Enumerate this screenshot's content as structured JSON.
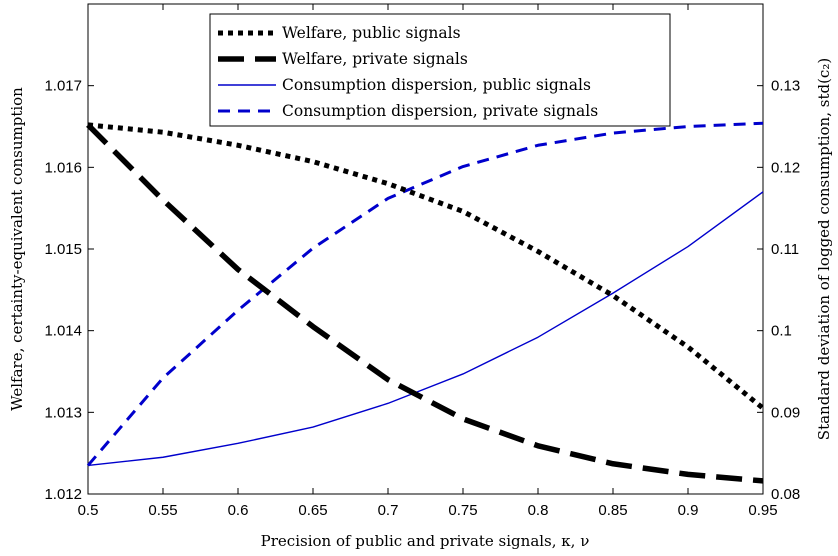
{
  "chart_data": {
    "type": "line",
    "title": "",
    "xlabel": "Precision of public and private signals, κ, ν",
    "ylabel_left": "Welfare, certainty-equivalent consumption",
    "ylabel_right": "Standard deviation of logged consumption, std(c₂)",
    "xlim": [
      0.5,
      0.95
    ],
    "ylim_left": [
      1.012,
      1.018
    ],
    "ylim_right": [
      0.08,
      0.14
    ],
    "x_ticks": [
      "0.5",
      "0.55",
      "0.6",
      "0.65",
      "0.7",
      "0.75",
      "0.8",
      "0.85",
      "0.9",
      "0.95"
    ],
    "y_ticks_left": [
      "1.012",
      "1.013",
      "1.014",
      "1.015",
      "1.016",
      "1.017"
    ],
    "y_ticks_right": [
      "0.08",
      "0.09",
      "0.1",
      "0.11",
      "0.12",
      "0.13"
    ],
    "grid": false,
    "legend_position": "top-center",
    "x": [
      0.5,
      0.55,
      0.6,
      0.65,
      0.7,
      0.75,
      0.8,
      0.85,
      0.9,
      0.95
    ],
    "series": [
      {
        "name": "Welfare, public signals",
        "axis": "left",
        "color": "#000000",
        "style": "dotted",
        "values": [
          1.01652,
          1.01643,
          1.01627,
          1.01607,
          1.0158,
          1.01546,
          1.01497,
          1.01443,
          1.0138,
          1.01305
        ]
      },
      {
        "name": "Welfare, private signals",
        "axis": "left",
        "color": "#000000",
        "style": "dashed-thick",
        "values": [
          1.01652,
          1.0156,
          1.01475,
          1.01405,
          1.0134,
          1.01292,
          1.01259,
          1.01237,
          1.01224,
          1.01216
        ]
      },
      {
        "name": "Consumption dispersion, public signals",
        "axis": "right",
        "color": "#0000cc",
        "style": "solid",
        "values": [
          0.0835,
          0.0845,
          0.0862,
          0.0882,
          0.0911,
          0.0947,
          0.0992,
          0.1046,
          0.1103,
          0.117
        ]
      },
      {
        "name": "Consumption dispersion, private signals",
        "axis": "right",
        "color": "#0000cc",
        "style": "dashed",
        "values": [
          0.0835,
          0.0942,
          0.1025,
          0.1101,
          0.1162,
          0.1201,
          0.1227,
          0.1242,
          0.125,
          0.1254
        ]
      }
    ]
  }
}
